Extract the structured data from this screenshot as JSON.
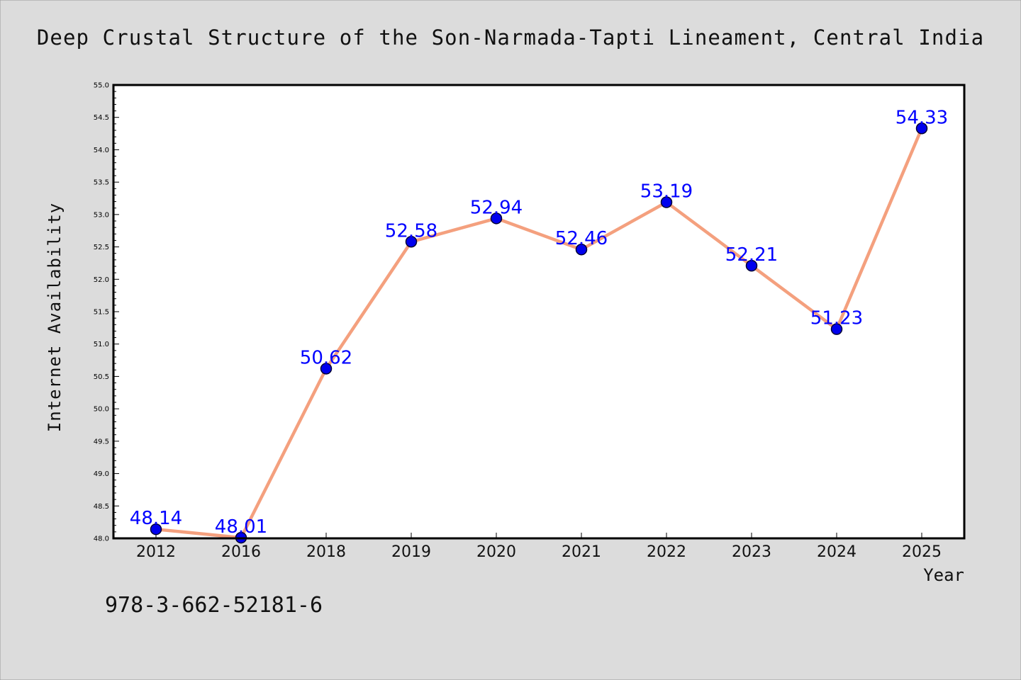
{
  "chart_data": {
    "type": "line",
    "title": "Deep Crustal Structure of the Son-Narmada-Tapti Lineament, Central India",
    "xlabel": "Year",
    "ylabel": "Internet Availability",
    "categories": [
      "2012",
      "2016",
      "2018",
      "2019",
      "2020",
      "2021",
      "2022",
      "2023",
      "2024",
      "2025"
    ],
    "series": [
      {
        "values": [
          48.14,
          48.01,
          50.62,
          52.58,
          52.94,
          52.46,
          53.19,
          52.21,
          51.23,
          54.33
        ]
      }
    ],
    "data_labels": [
      "48.14",
      "48.01",
      "50.62",
      "52.58",
      "52.94",
      "52.46",
      "53.19",
      "52.21",
      "51.23",
      "54.33"
    ],
    "ylim": [
      48.0,
      55.0
    ],
    "yticks": [
      "48.0",
      "48.5",
      "49.0",
      "49.5",
      "50.0",
      "50.5",
      "51.0",
      "51.5",
      "52.0",
      "52.5",
      "53.0",
      "53.5",
      "54.0",
      "54.5",
      "55.0"
    ],
    "grid": false,
    "legend": "none",
    "colors": {
      "background": "#dcdcdc",
      "plot_background": "#ffffff",
      "line": "#f4a07e",
      "marker": "#0000ee",
      "data_label": "#0000ff"
    }
  },
  "annotation": "978-3-662-52181-6"
}
